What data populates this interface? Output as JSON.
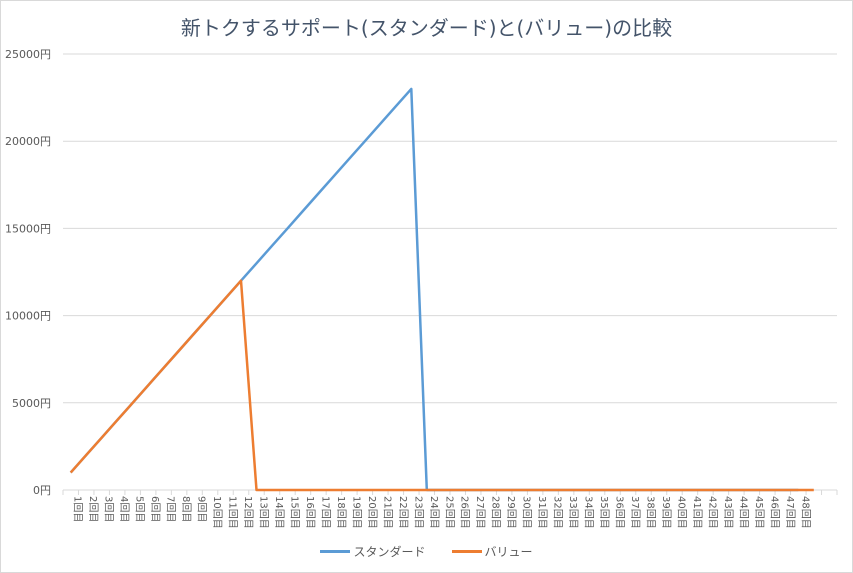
{
  "chart_data": {
    "type": "line",
    "title": "新トクするサポート(スタンダード)と(バリュー)の比較",
    "xlabel": "",
    "ylabel": "",
    "ylim": [
      0,
      25000
    ],
    "yticks": [
      "0円",
      "5000円",
      "10000円",
      "15000円",
      "20000円",
      "25000円"
    ],
    "grid": true,
    "legend_position": "bottom",
    "categories": [
      "1回目",
      "2回目",
      "3回目",
      "4回目",
      "5回目",
      "6回目",
      "7回目",
      "8回目",
      "9回目",
      "10回目",
      "11回目",
      "12回目",
      "13回目",
      "14回目",
      "15回目",
      "16回目",
      "17回目",
      "18回目",
      "19回目",
      "20回目",
      "21回目",
      "22回目",
      "23回目",
      "24回目",
      "25回目",
      "26回目",
      "27回目",
      "28回目",
      "29回目",
      "30回目",
      "31回目",
      "32回目",
      "33回目",
      "34回目",
      "35回目",
      "36回目",
      "37回目",
      "38回目",
      "39回目",
      "40回目",
      "41回目",
      "42回目",
      "43回目",
      "44回目",
      "45回目",
      "46回目",
      "47回目",
      "48回目",
      "",
      ""
    ],
    "series": [
      {
        "name": "スタンダード",
        "color": "#5b9bd5",
        "values": [
          1000,
          2000,
          3000,
          4000,
          5000,
          6000,
          7000,
          8000,
          9000,
          10000,
          11000,
          12000,
          13000,
          14000,
          15000,
          16000,
          17000,
          18000,
          19000,
          20000,
          21000,
          22000,
          23000,
          0,
          0,
          0,
          0,
          0,
          0,
          0,
          0,
          0,
          0,
          0,
          0,
          0,
          0,
          0,
          0,
          0,
          0,
          0,
          0,
          0,
          0,
          0,
          0,
          0
        ]
      },
      {
        "name": "バリュー",
        "color": "#ed7d31",
        "values": [
          1000,
          2000,
          3000,
          4000,
          5000,
          6000,
          7000,
          8000,
          9000,
          10000,
          11000,
          12000,
          0,
          0,
          0,
          0,
          0,
          0,
          0,
          0,
          0,
          0,
          0,
          0,
          0,
          0,
          0,
          0,
          0,
          0,
          0,
          0,
          0,
          0,
          0,
          0,
          0,
          0,
          0,
          0,
          0,
          0,
          0,
          0,
          0,
          0,
          0,
          0,
          0
        ]
      }
    ]
  },
  "legend": {
    "items": [
      {
        "label": "スタンダード",
        "color": "#5b9bd5"
      },
      {
        "label": "バリュー",
        "color": "#ed7d31"
      }
    ]
  }
}
